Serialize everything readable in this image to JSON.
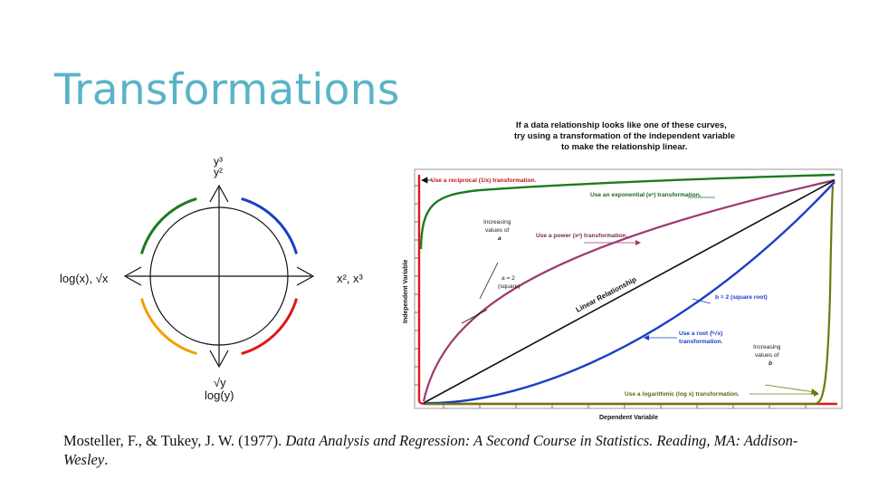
{
  "slide": {
    "title": "Transformations"
  },
  "circle": {
    "top_label_1": "y³",
    "top_label_2": "y²",
    "left_label": "log(x), √x",
    "right_label": "x², x³",
    "bottom_label_1": "√y",
    "bottom_label_2": "log(y)",
    "colors": {
      "top_left": "#1e7a1e",
      "top_right": "#1a3fc6",
      "bottom_left": "#f0a000",
      "bottom_right": "#e01818"
    }
  },
  "chart": {
    "header_line1": "If a data relationship looks like one of these curves,",
    "header_line2": "try using a transformation of the independent variable",
    "header_line3": "to make the relationship linear.",
    "y_axis_label": "Independent Variable",
    "x_axis_label": "Dependent Variable",
    "annotations": {
      "reciprocal": "Use a reciprocal (1/x) transformation.",
      "exponential": "Use an exponential (eˣ) transformation.",
      "power": "Use a power (xᵃ) transformation.",
      "inc_left_1": "Increasing",
      "inc_left_2": "values of",
      "inc_left_3": "a",
      "square_1": "a = 2",
      "square_2": "(square)",
      "linear": "Linear Relationship",
      "sqrt": "b = 2 (square root)",
      "root_1": "Use a root (ᵇ√x)",
      "root_2": "transformation.",
      "inc_right_1": "Increasing",
      "inc_right_2": "values of",
      "inc_right_3": "b",
      "log": "Use a logarithmic (log x) transformation."
    },
    "colors": {
      "reciprocal": "#e01818",
      "exponential": "#1e7a1e",
      "power": "#9b3a6e",
      "linear": "#111111",
      "root": "#1a3fc6",
      "log": "#6b7a10"
    }
  },
  "citation": {
    "authors": "Mosteller, F., & Tukey, J. W. (1977). ",
    "title_italic": "Data Analysis and Regression: A Second Course in Statistics. Reading, MA: Addison-Wesley",
    "end": "."
  }
}
